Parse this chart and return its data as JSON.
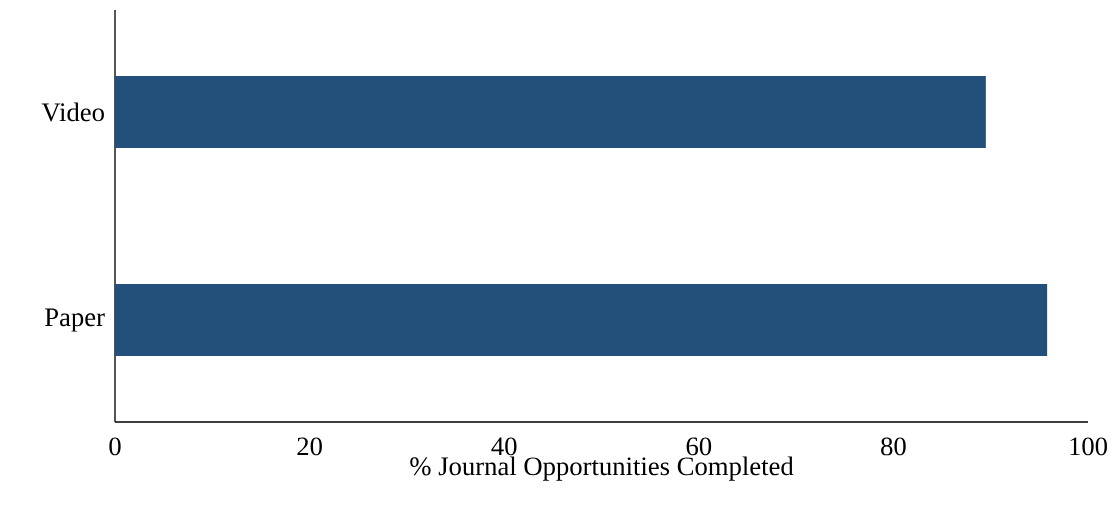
{
  "chart_data": {
    "type": "bar",
    "orientation": "horizontal",
    "categories": [
      "Video",
      "Paper"
    ],
    "values": [
      89.5,
      95.8
    ],
    "color": "#22507a",
    "xlabel": "% Journal Opportunities Completed",
    "xlim": [
      0,
      100
    ],
    "xticks": [
      0,
      20,
      40,
      60,
      80,
      100
    ],
    "grid": false
  }
}
